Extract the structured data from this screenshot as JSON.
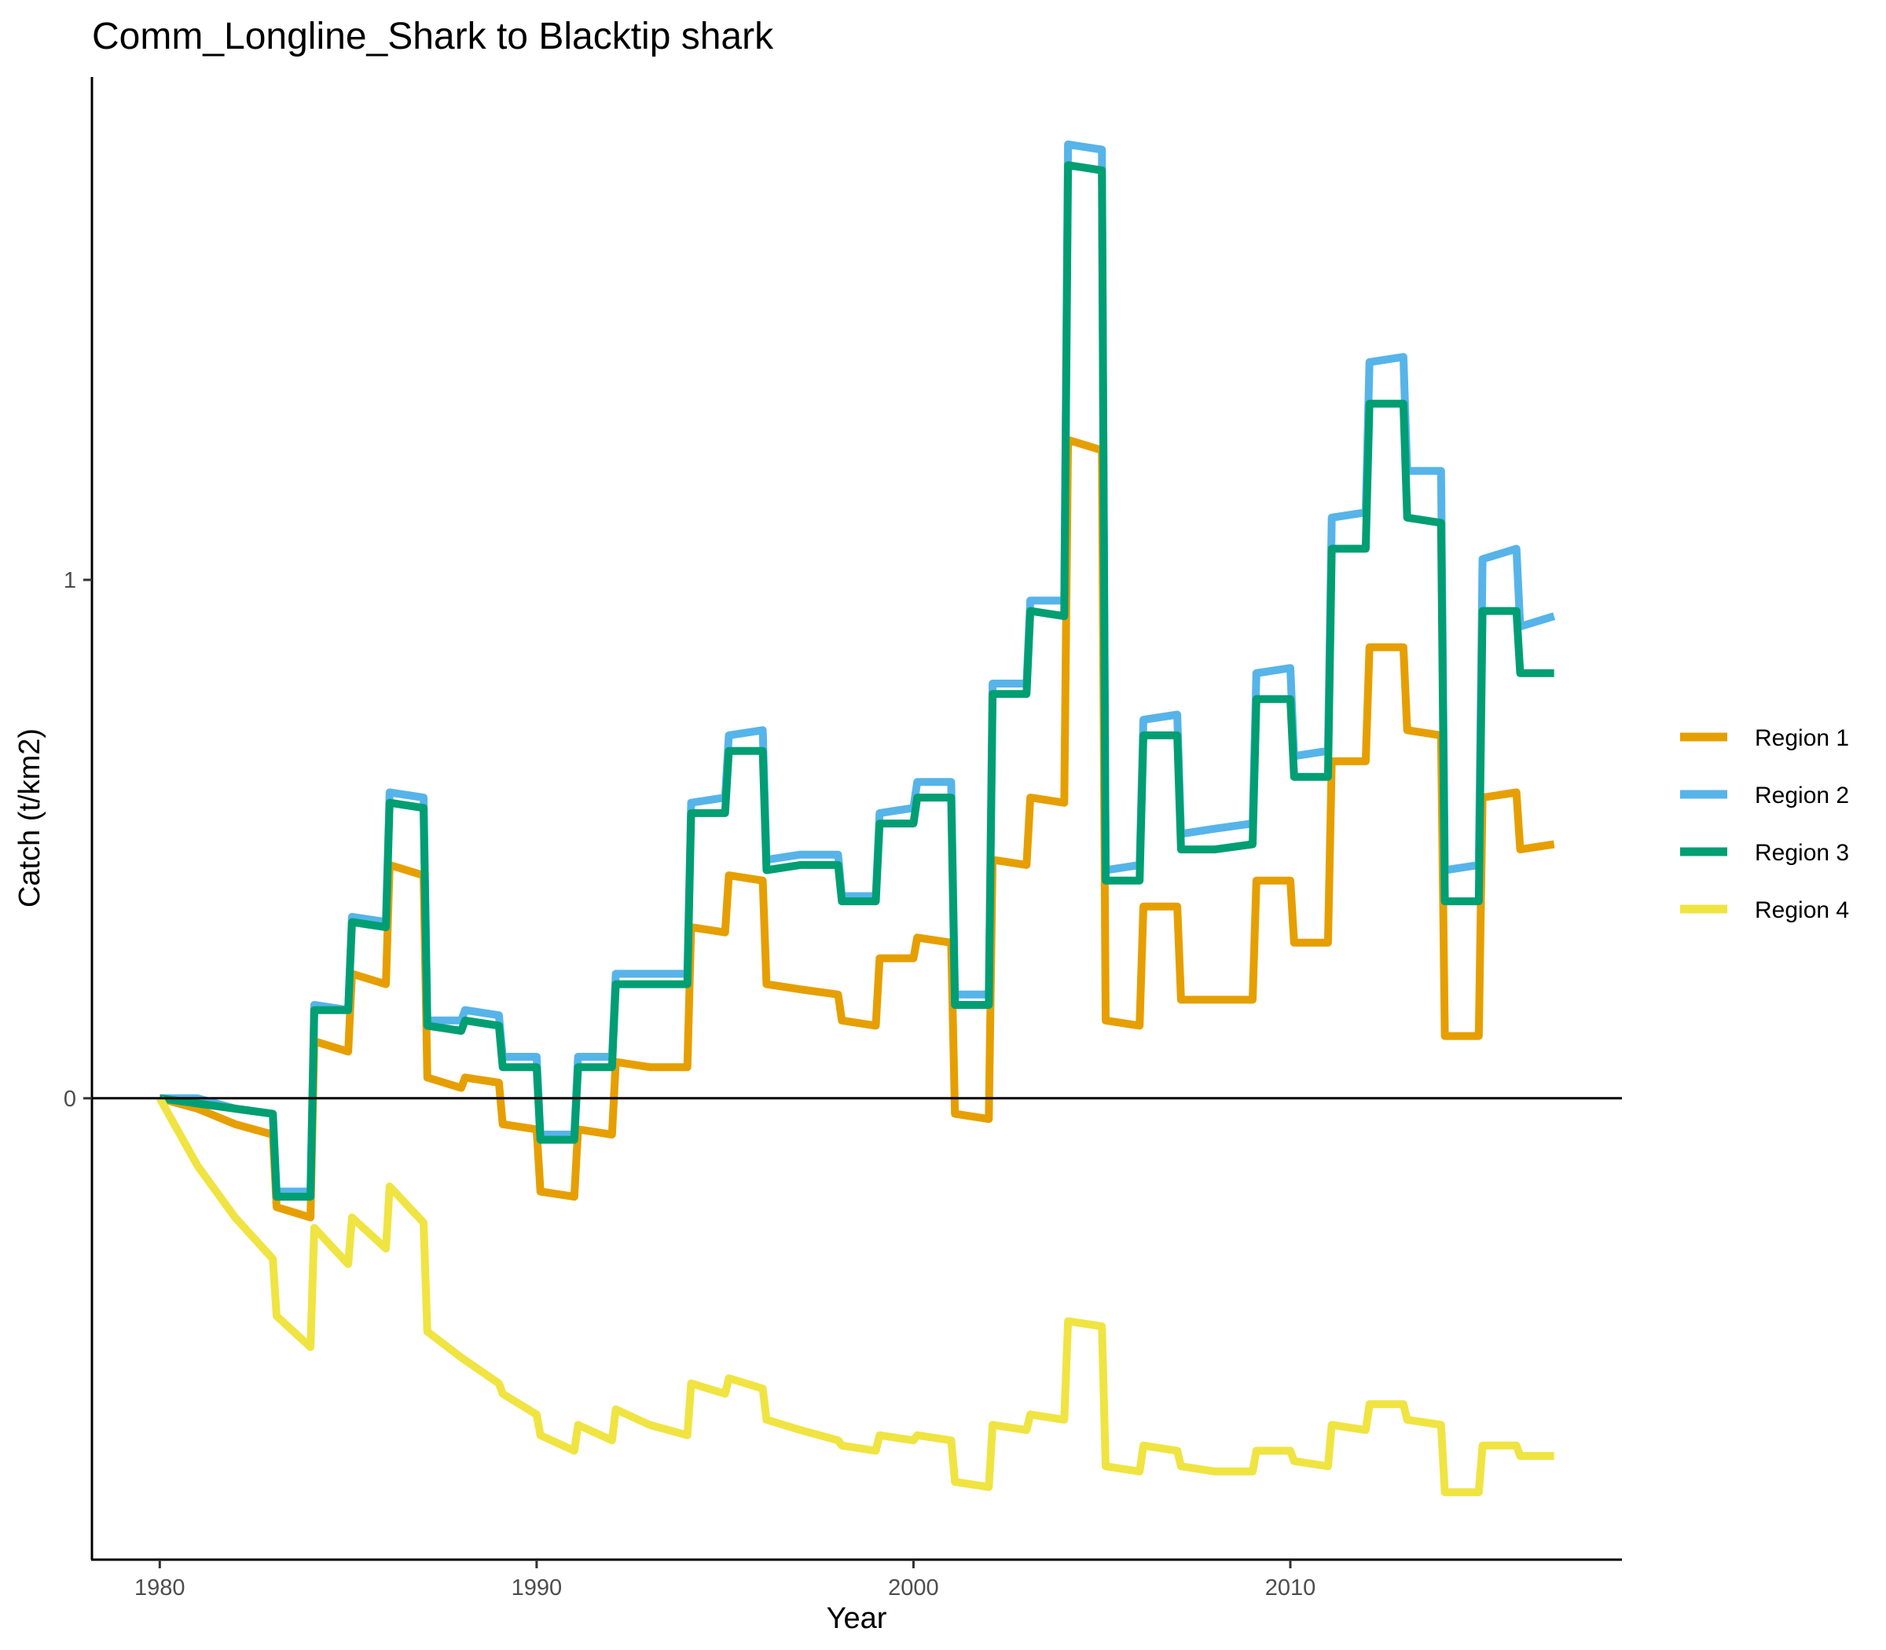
{
  "chart_data": {
    "type": "line",
    "title": "Comm_Longline_Shark to Blacktip shark",
    "xlabel": "Year",
    "ylabel": "Catch (t/km2)",
    "xlim": [
      1978.2,
      2018.8
    ],
    "ylim": [
      -0.89,
      1.97
    ],
    "x_ticks": [
      1980,
      1990,
      2000,
      2010
    ],
    "y_ticks": [
      0,
      1
    ],
    "reference_line_y": 0,
    "grid": false,
    "legend_position": "right",
    "series": [
      {
        "name": "Region 1",
        "color": "#E69F00",
        "points": [
          [
            1980,
            0
          ],
          [
            1981,
            -0.02
          ],
          [
            1982,
            -0.05
          ],
          [
            1983,
            -0.07
          ],
          [
            1983.1,
            -0.21
          ],
          [
            1984,
            -0.23
          ],
          [
            1984.1,
            0.11
          ],
          [
            1985,
            0.09
          ],
          [
            1985.1,
            0.24
          ],
          [
            1986,
            0.22
          ],
          [
            1986.1,
            0.45
          ],
          [
            1987,
            0.43
          ],
          [
            1987.1,
            0.04
          ],
          [
            1988,
            0.02
          ],
          [
            1988.1,
            0.04
          ],
          [
            1989,
            0.03
          ],
          [
            1989.1,
            -0.05
          ],
          [
            1990,
            -0.06
          ],
          [
            1990.1,
            -0.18
          ],
          [
            1991,
            -0.19
          ],
          [
            1991.1,
            -0.06
          ],
          [
            1992,
            -0.07
          ],
          [
            1992.1,
            0.07
          ],
          [
            1993,
            0.06
          ],
          [
            1994,
            0.06
          ],
          [
            1994.1,
            0.33
          ],
          [
            1995,
            0.32
          ],
          [
            1995.1,
            0.43
          ],
          [
            1996,
            0.42
          ],
          [
            1996.1,
            0.22
          ],
          [
            1997,
            0.21
          ],
          [
            1998,
            0.2
          ],
          [
            1998.1,
            0.15
          ],
          [
            1999,
            0.14
          ],
          [
            1999.1,
            0.27
          ],
          [
            2000,
            0.27
          ],
          [
            2000.1,
            0.31
          ],
          [
            2001,
            0.3
          ],
          [
            2001.1,
            -0.03
          ],
          [
            2002,
            -0.04
          ],
          [
            2002.1,
            0.46
          ],
          [
            2003,
            0.45
          ],
          [
            2003.1,
            0.58
          ],
          [
            2004,
            0.57
          ],
          [
            2004.1,
            1.27
          ],
          [
            2005,
            1.25
          ],
          [
            2005.1,
            0.15
          ],
          [
            2006,
            0.14
          ],
          [
            2006.1,
            0.37
          ],
          [
            2007,
            0.37
          ],
          [
            2007.1,
            0.19
          ],
          [
            2008,
            0.19
          ],
          [
            2009,
            0.19
          ],
          [
            2009.1,
            0.42
          ],
          [
            2010,
            0.42
          ],
          [
            2010.1,
            0.3
          ],
          [
            2011,
            0.3
          ],
          [
            2011.1,
            0.65
          ],
          [
            2012,
            0.65
          ],
          [
            2012.1,
            0.87
          ],
          [
            2013,
            0.87
          ],
          [
            2013.1,
            0.71
          ],
          [
            2014,
            0.7
          ],
          [
            2014.1,
            0.12
          ],
          [
            2015,
            0.12
          ],
          [
            2015.1,
            0.58
          ],
          [
            2016,
            0.59
          ],
          [
            2016.1,
            0.48
          ],
          [
            2017,
            0.49
          ]
        ]
      },
      {
        "name": "Region 2",
        "color": "#56B4E9",
        "points": [
          [
            1980,
            0
          ],
          [
            1981,
            0
          ],
          [
            1982,
            -0.02
          ],
          [
            1983,
            -0.03
          ],
          [
            1983.1,
            -0.18
          ],
          [
            1984,
            -0.18
          ],
          [
            1984.1,
            0.18
          ],
          [
            1985,
            0.17
          ],
          [
            1985.1,
            0.35
          ],
          [
            1986,
            0.34
          ],
          [
            1986.1,
            0.59
          ],
          [
            1987,
            0.58
          ],
          [
            1987.1,
            0.15
          ],
          [
            1988,
            0.15
          ],
          [
            1988.1,
            0.17
          ],
          [
            1989,
            0.16
          ],
          [
            1989.1,
            0.08
          ],
          [
            1990,
            0.08
          ],
          [
            1990.1,
            -0.07
          ],
          [
            1991,
            -0.07
          ],
          [
            1991.1,
            0.08
          ],
          [
            1992,
            0.08
          ],
          [
            1992.1,
            0.24
          ],
          [
            1993,
            0.24
          ],
          [
            1994,
            0.24
          ],
          [
            1994.1,
            0.57
          ],
          [
            1995,
            0.58
          ],
          [
            1995.1,
            0.7
          ],
          [
            1996,
            0.71
          ],
          [
            1996.1,
            0.46
          ],
          [
            1997,
            0.47
          ],
          [
            1998,
            0.47
          ],
          [
            1998.1,
            0.39
          ],
          [
            1999,
            0.39
          ],
          [
            1999.1,
            0.55
          ],
          [
            2000,
            0.56
          ],
          [
            2000.1,
            0.61
          ],
          [
            2001,
            0.61
          ],
          [
            2001.1,
            0.2
          ],
          [
            2002,
            0.2
          ],
          [
            2002.1,
            0.8
          ],
          [
            2003,
            0.8
          ],
          [
            2003.1,
            0.96
          ],
          [
            2004,
            0.96
          ],
          [
            2004.1,
            1.84
          ],
          [
            2005,
            1.83
          ],
          [
            2005.1,
            0.44
          ],
          [
            2006,
            0.45
          ],
          [
            2006.1,
            0.73
          ],
          [
            2007,
            0.74
          ],
          [
            2007.1,
            0.51
          ],
          [
            2008,
            0.52
          ],
          [
            2009,
            0.53
          ],
          [
            2009.1,
            0.82
          ],
          [
            2010,
            0.83
          ],
          [
            2010.1,
            0.66
          ],
          [
            2011,
            0.67
          ],
          [
            2011.1,
            1.12
          ],
          [
            2012,
            1.13
          ],
          [
            2012.1,
            1.42
          ],
          [
            2013,
            1.43
          ],
          [
            2013.1,
            1.21
          ],
          [
            2014,
            1.21
          ],
          [
            2014.1,
            0.44
          ],
          [
            2015,
            0.45
          ],
          [
            2015.1,
            1.04
          ],
          [
            2016,
            1.06
          ],
          [
            2016.1,
            0.91
          ],
          [
            2017,
            0.93
          ]
        ]
      },
      {
        "name": "Region 3",
        "color": "#009E73",
        "points": [
          [
            1980,
            0
          ],
          [
            1981,
            -0.01
          ],
          [
            1982,
            -0.02
          ],
          [
            1983,
            -0.03
          ],
          [
            1983.1,
            -0.19
          ],
          [
            1984,
            -0.19
          ],
          [
            1984.1,
            0.17
          ],
          [
            1985,
            0.17
          ],
          [
            1985.1,
            0.34
          ],
          [
            1986,
            0.33
          ],
          [
            1986.1,
            0.57
          ],
          [
            1987,
            0.56
          ],
          [
            1987.1,
            0.14
          ],
          [
            1988,
            0.13
          ],
          [
            1988.1,
            0.15
          ],
          [
            1989,
            0.14
          ],
          [
            1989.1,
            0.06
          ],
          [
            1990,
            0.06
          ],
          [
            1990.1,
            -0.08
          ],
          [
            1991,
            -0.08
          ],
          [
            1991.1,
            0.06
          ],
          [
            1992,
            0.06
          ],
          [
            1992.1,
            0.22
          ],
          [
            1993,
            0.22
          ],
          [
            1994,
            0.22
          ],
          [
            1994.1,
            0.55
          ],
          [
            1995,
            0.55
          ],
          [
            1995.1,
            0.67
          ],
          [
            1996,
            0.67
          ],
          [
            1996.1,
            0.44
          ],
          [
            1997,
            0.45
          ],
          [
            1998,
            0.45
          ],
          [
            1998.1,
            0.38
          ],
          [
            1999,
            0.38
          ],
          [
            1999.1,
            0.53
          ],
          [
            2000,
            0.53
          ],
          [
            2000.1,
            0.58
          ],
          [
            2001,
            0.58
          ],
          [
            2001.1,
            0.18
          ],
          [
            2002,
            0.18
          ],
          [
            2002.1,
            0.78
          ],
          [
            2003,
            0.78
          ],
          [
            2003.1,
            0.94
          ],
          [
            2004,
            0.93
          ],
          [
            2004.1,
            1.8
          ],
          [
            2005,
            1.79
          ],
          [
            2005.1,
            0.42
          ],
          [
            2006,
            0.42
          ],
          [
            2006.1,
            0.7
          ],
          [
            2007,
            0.7
          ],
          [
            2007.1,
            0.48
          ],
          [
            2008,
            0.48
          ],
          [
            2009,
            0.49
          ],
          [
            2009.1,
            0.77
          ],
          [
            2010,
            0.77
          ],
          [
            2010.1,
            0.62
          ],
          [
            2011,
            0.62
          ],
          [
            2011.1,
            1.06
          ],
          [
            2012,
            1.06
          ],
          [
            2012.1,
            1.34
          ],
          [
            2013,
            1.34
          ],
          [
            2013.1,
            1.12
          ],
          [
            2014,
            1.11
          ],
          [
            2014.1,
            0.38
          ],
          [
            2015,
            0.38
          ],
          [
            2015.1,
            0.94
          ],
          [
            2016,
            0.94
          ],
          [
            2016.1,
            0.82
          ],
          [
            2017,
            0.82
          ]
        ]
      },
      {
        "name": "Region 4",
        "color": "#F0E442",
        "points": [
          [
            1980,
            0
          ],
          [
            1981,
            -0.13
          ],
          [
            1982,
            -0.23
          ],
          [
            1983,
            -0.31
          ],
          [
            1983.1,
            -0.42
          ],
          [
            1984,
            -0.48
          ],
          [
            1984.1,
            -0.25
          ],
          [
            1985,
            -0.32
          ],
          [
            1985.1,
            -0.23
          ],
          [
            1986,
            -0.29
          ],
          [
            1986.1,
            -0.17
          ],
          [
            1987,
            -0.24
          ],
          [
            1987.1,
            -0.45
          ],
          [
            1988,
            -0.5
          ],
          [
            1989,
            -0.55
          ],
          [
            1989.1,
            -0.57
          ],
          [
            1990,
            -0.61
          ],
          [
            1990.1,
            -0.65
          ],
          [
            1991,
            -0.68
          ],
          [
            1991.1,
            -0.63
          ],
          [
            1992,
            -0.66
          ],
          [
            1992.1,
            -0.6
          ],
          [
            1993,
            -0.63
          ],
          [
            1994,
            -0.65
          ],
          [
            1994.1,
            -0.55
          ],
          [
            1995,
            -0.57
          ],
          [
            1995.1,
            -0.54
          ],
          [
            1996,
            -0.56
          ],
          [
            1996.1,
            -0.62
          ],
          [
            1997,
            -0.64
          ],
          [
            1998,
            -0.66
          ],
          [
            1998.1,
            -0.67
          ],
          [
            1999,
            -0.68
          ],
          [
            1999.1,
            -0.65
          ],
          [
            2000,
            -0.66
          ],
          [
            2000.1,
            -0.65
          ],
          [
            2001,
            -0.66
          ],
          [
            2001.1,
            -0.74
          ],
          [
            2002,
            -0.75
          ],
          [
            2002.1,
            -0.63
          ],
          [
            2003,
            -0.64
          ],
          [
            2003.1,
            -0.61
          ],
          [
            2004,
            -0.62
          ],
          [
            2004.1,
            -0.43
          ],
          [
            2005,
            -0.44
          ],
          [
            2005.1,
            -0.71
          ],
          [
            2006,
            -0.72
          ],
          [
            2006.1,
            -0.67
          ],
          [
            2007,
            -0.68
          ],
          [
            2007.1,
            -0.71
          ],
          [
            2008,
            -0.72
          ],
          [
            2009,
            -0.72
          ],
          [
            2009.1,
            -0.68
          ],
          [
            2010,
            -0.68
          ],
          [
            2010.1,
            -0.7
          ],
          [
            2011,
            -0.71
          ],
          [
            2011.1,
            -0.63
          ],
          [
            2012,
            -0.64
          ],
          [
            2012.1,
            -0.59
          ],
          [
            2013,
            -0.59
          ],
          [
            2013.1,
            -0.62
          ],
          [
            2014,
            -0.63
          ],
          [
            2014.1,
            -0.76
          ],
          [
            2015,
            -0.76
          ],
          [
            2015.1,
            -0.67
          ],
          [
            2016,
            -0.67
          ],
          [
            2016.1,
            -0.69
          ],
          [
            2017,
            -0.69
          ]
        ]
      }
    ]
  }
}
